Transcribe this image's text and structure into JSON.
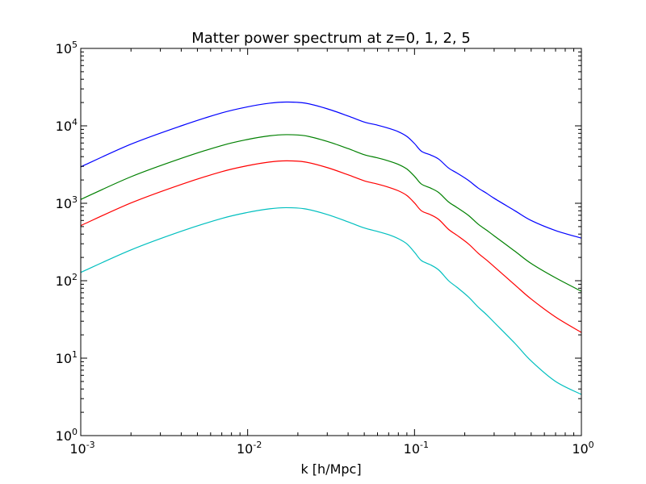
{
  "chart_data": {
    "type": "line",
    "title": "Matter power spectrum at z=0, 1, 2, 5",
    "xlabel": "k [h/Mpc]",
    "ylabel": "",
    "xscale": "log",
    "yscale": "log",
    "xlim": [
      0.001,
      1
    ],
    "ylim": [
      1,
      100000
    ],
    "grid": false,
    "x_ticks": [
      {
        "base": "10",
        "exp": "-3",
        "value": 0.001
      },
      {
        "base": "10",
        "exp": "-2",
        "value": 0.01
      },
      {
        "base": "10",
        "exp": "-1",
        "value": 0.1
      },
      {
        "base": "10",
        "exp": "0",
        "value": 1
      }
    ],
    "y_ticks": [
      {
        "base": "10",
        "exp": "0",
        "value": 1
      },
      {
        "base": "10",
        "exp": "1",
        "value": 10
      },
      {
        "base": "10",
        "exp": "2",
        "value": 100
      },
      {
        "base": "10",
        "exp": "3",
        "value": 1000
      },
      {
        "base": "10",
        "exp": "4",
        "value": 10000
      },
      {
        "base": "10",
        "exp": "5",
        "value": 100000
      }
    ],
    "x": [
      0.001,
      0.002,
      0.004,
      0.007,
      0.01,
      0.0135,
      0.017,
      0.022,
      0.03,
      0.04,
      0.05,
      0.06,
      0.07,
      0.08,
      0.09,
      0.1,
      0.11,
      0.125,
      0.14,
      0.16,
      0.18,
      0.21,
      0.24,
      0.27,
      0.3,
      0.4,
      0.5,
      0.7,
      1.0
    ],
    "series": [
      {
        "color": "#0000ff",
        "values": [
          2950,
          5800,
          10000,
          14700,
          17600,
          19600,
          20300,
          19700,
          16600,
          13400,
          11200,
          10200,
          9300,
          8400,
          7300,
          5900,
          4700,
          4200,
          3700,
          2850,
          2450,
          1980,
          1580,
          1350,
          1160,
          800,
          600,
          445,
          355
        ]
      },
      {
        "color": "#008000",
        "values": [
          1120,
          2200,
          3800,
          5570,
          6670,
          7430,
          7690,
          7460,
          6290,
          5080,
          4240,
          3860,
          3520,
          3180,
          2770,
          2230,
          1770,
          1570,
          1370,
          1040,
          880,
          700,
          540,
          450,
          380,
          240,
          167,
          109,
          73
        ]
      },
      {
        "color": "#ff0000",
        "values": [
          515,
          1010,
          1750,
          2560,
          3060,
          3410,
          3530,
          3420,
          2890,
          2330,
          1950,
          1770,
          1610,
          1450,
          1260,
          1010,
          800,
          710,
          615,
          460,
          385,
          300,
          228,
          185,
          152,
          88,
          58,
          34,
          21.5
        ]
      },
      {
        "color": "#00bfbf",
        "values": [
          128,
          250,
          435,
          637,
          762,
          848,
          878,
          848,
          716,
          575,
          480,
          433,
          393,
          349,
          299,
          233,
          182,
          160,
          137,
          100,
          82,
          62,
          46,
          36.5,
          29,
          15.5,
          9.2,
          5.0,
          3.4
        ]
      }
    ]
  }
}
